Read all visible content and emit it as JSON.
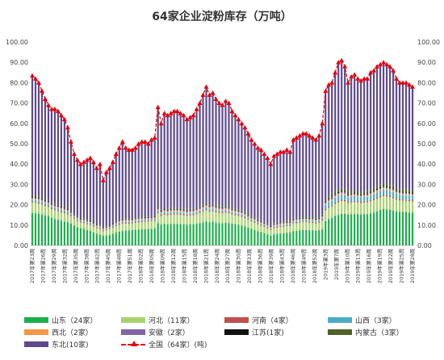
{
  "chart_data": {
    "type": "bar",
    "stacked": true,
    "title": "64家企业淀粉库存（万吨）",
    "ylim": [
      0,
      100
    ],
    "yticks": [
      "0.00",
      "10.00",
      "20.00",
      "30.00",
      "40.00",
      "50.00",
      "60.00",
      "70.00",
      "80.00",
      "90.00",
      "100.00"
    ],
    "grid": false,
    "legend_position": "bottom",
    "xtick_labels": [
      "2017年第23周",
      "2017年第26周",
      "2017年第29周",
      "2017年第32周",
      "2017年第35周",
      "2017年第38周",
      "2017年第42周",
      "2017年第45周",
      "2017年第48周",
      "2017年第51周",
      "2018年第02周",
      "2018年第05周",
      "2018年第09周",
      "2018年第12周",
      "2018年第15周",
      "2018年第18周",
      "2018年第21周",
      "2018年第24周",
      "2018年第27周",
      "2018年第30周",
      "2018年第33周",
      "2018年第36周",
      "2018年第39周",
      "2018年第43周",
      "2018年第46周",
      "2018年第49周",
      "2018年第52周",
      "2019年第3周",
      "2019年第7周",
      "2019年第10周",
      "2019年第13周",
      "2019年第16周",
      "2019年第19周",
      "2019年第22周",
      "2019年第25周",
      "2019年第28周"
    ],
    "total_line": {
      "name": "全国（64家）(吨)",
      "values": [
        83.5,
        82,
        80,
        76,
        72,
        69,
        67,
        67,
        66,
        64,
        62,
        58,
        51,
        45,
        42,
        40,
        41,
        42,
        43,
        41,
        38,
        40,
        32,
        36,
        38,
        41,
        45,
        48,
        51,
        48,
        47,
        47,
        48,
        50,
        51,
        51,
        50,
        52,
        53,
        68,
        60,
        65,
        64,
        65,
        66,
        66,
        65,
        64,
        62,
        63,
        64,
        67,
        70,
        74,
        78,
        74,
        75,
        72,
        70,
        69,
        71,
        70,
        66,
        64,
        62,
        60,
        58,
        55,
        52,
        50,
        48,
        47,
        45,
        43,
        40,
        44,
        45,
        46,
        46,
        47,
        46,
        52,
        53,
        54,
        55,
        55,
        54,
        53,
        52,
        54,
        60,
        76,
        79,
        80,
        85,
        90,
        91,
        88,
        80,
        83,
        84,
        82,
        81,
        82,
        82,
        85,
        86,
        88,
        89,
        90,
        89,
        88,
        86,
        82,
        80,
        80,
        80,
        79,
        78
      ]
    },
    "series": [
      {
        "name": "山东（24家）",
        "color": "#1bb04a",
        "values": [
          16,
          15.8,
          15.6,
          15.2,
          14.8,
          14.5,
          13.5,
          13,
          12.6,
          12.2,
          11.8,
          11.4,
          10.8,
          9.8,
          9,
          8.5,
          8.2,
          7.5,
          7.1,
          6.4,
          5.8,
          5.2,
          4.8,
          4.9,
          5.2,
          5.8,
          6.3,
          6.8,
          7.1,
          7.3,
          7.4,
          7.5,
          7.7,
          7.8,
          7.9,
          8,
          8.1,
          8.2,
          8.3,
          11,
          10.2,
          10.5,
          10.4,
          10.5,
          10.6,
          10.6,
          10.5,
          10.4,
          10.2,
          10.3,
          10.4,
          10.7,
          11,
          11.4,
          11.8,
          11.4,
          11.5,
          11.2,
          11,
          10.9,
          11.1,
          11,
          10.6,
          10.4,
          10.2,
          9.8,
          9.4,
          8.8,
          8.2,
          7.6,
          7,
          6.5,
          6,
          5.4,
          4.8,
          5.4,
          5.6,
          5.8,
          6,
          6.2,
          6.3,
          7,
          7.2,
          7.4,
          7.6,
          7.6,
          7.5,
          7.4,
          7.2,
          7.5,
          8,
          12,
          13,
          13.5,
          14.5,
          15,
          15.5,
          15.5,
          15.2,
          15.3,
          15.4,
          15.3,
          15.2,
          15.3,
          15.4,
          15.8,
          16.2,
          16.8,
          17.4,
          18,
          17.8,
          17.6,
          17.2,
          16.8,
          16.5,
          16.4,
          16.3,
          16.2,
          16.1
        ]
      },
      {
        "name": "河北（11家）",
        "color": "#a9d36e",
        "values": [
          5,
          5,
          4.9,
          4.8,
          4.6,
          4.4,
          4.3,
          4.2,
          4.2,
          4.1,
          4,
          3.8,
          3.5,
          3.2,
          3,
          2.8,
          2.8,
          2.9,
          3,
          2.9,
          2.6,
          2.8,
          2.2,
          2.5,
          2.7,
          2.9,
          3.1,
          3.3,
          3.5,
          3.4,
          3.3,
          3.3,
          3.4,
          3.5,
          3.6,
          3.6,
          3.5,
          3.6,
          3.7,
          4.7,
          4.2,
          4.5,
          4.4,
          4.5,
          4.6,
          4.6,
          4.5,
          4.4,
          4.3,
          4.4,
          4.4,
          4.6,
          4.8,
          5.1,
          5.4,
          5.1,
          5.2,
          5,
          4.9,
          4.8,
          4.9,
          4.8,
          4.6,
          4.4,
          4.3,
          4.2,
          4,
          3.8,
          3.6,
          3.5,
          3.3,
          3.2,
          3.1,
          3,
          2.8,
          3,
          3.1,
          3.2,
          3.2,
          3.3,
          3.2,
          3.6,
          3.7,
          3.8,
          3.8,
          3.8,
          3.7,
          3.7,
          3.6,
          3.7,
          4.2,
          5.3,
          5.5,
          5.6,
          5.9,
          6.2,
          6.3,
          6.1,
          5.6,
          5.8,
          5.9,
          5.7,
          5.6,
          5.7,
          5.7,
          5.9,
          6,
          6.1,
          6.2,
          6.3,
          6.2,
          6.1,
          6,
          5.7,
          5.6,
          5.6,
          5.6,
          5.5,
          5.4
        ]
      },
      {
        "name": "河南（4家）",
        "color": "#c0504d",
        "values": [
          0.5,
          0.5,
          0.5,
          0.5,
          0.5,
          0.5,
          0.5,
          0.5,
          0.5,
          0.5,
          0.5,
          0.5,
          0.4,
          0.4,
          0.4,
          0.4,
          0.4,
          0.4,
          0.4,
          0.4,
          0.4,
          0.4,
          0.3,
          0.3,
          0.3,
          0.4,
          0.4,
          0.4,
          0.4,
          0.4,
          0.4,
          0.4,
          0.4,
          0.4,
          0.4,
          0.4,
          0.4,
          0.4,
          0.4,
          0.5,
          0.5,
          0.5,
          0.5,
          0.5,
          0.5,
          0.5,
          0.5,
          0.5,
          0.5,
          0.5,
          0.5,
          0.5,
          0.5,
          0.5,
          0.6,
          0.5,
          0.5,
          0.5,
          0.5,
          0.5,
          0.5,
          0.5,
          0.5,
          0.5,
          0.5,
          0.5,
          0.5,
          0.4,
          0.4,
          0.4,
          0.4,
          0.4,
          0.4,
          0.4,
          0.4,
          0.4,
          0.4,
          0.4,
          0.4,
          0.4,
          0.4,
          0.4,
          0.4,
          0.4,
          0.4,
          0.4,
          0.4,
          0.4,
          0.4,
          0.4,
          0.5,
          0.6,
          0.6,
          0.6,
          0.7,
          0.7,
          0.7,
          0.7,
          0.6,
          0.6,
          0.6,
          0.6,
          0.6,
          0.6,
          0.6,
          0.6,
          0.7,
          0.7,
          0.7,
          0.7,
          0.7,
          0.7,
          0.7,
          0.6,
          0.6,
          0.6,
          0.6,
          0.6,
          0.6
        ]
      },
      {
        "name": "山西（3家）",
        "color": "#4bacc6",
        "values": [
          1,
          1,
          1,
          1,
          0.9,
          0.9,
          0.9,
          0.9,
          0.9,
          0.8,
          0.8,
          0.8,
          0.7,
          0.6,
          0.6,
          0.6,
          0.6,
          0.6,
          0.6,
          0.6,
          0.5,
          0.6,
          0.5,
          0.5,
          0.5,
          0.6,
          0.6,
          0.7,
          0.7,
          0.7,
          0.7,
          0.7,
          0.7,
          0.7,
          0.7,
          0.7,
          0.7,
          0.7,
          0.7,
          0.9,
          0.8,
          0.9,
          0.9,
          0.9,
          0.9,
          0.9,
          0.9,
          0.9,
          0.8,
          0.8,
          0.9,
          0.9,
          0.9,
          1,
          1,
          1,
          1,
          1,
          0.9,
          0.9,
          0.9,
          0.9,
          0.9,
          0.9,
          0.8,
          0.8,
          0.8,
          0.7,
          0.7,
          0.7,
          0.6,
          0.6,
          0.6,
          0.6,
          0.5,
          0.6,
          0.6,
          0.6,
          0.6,
          0.6,
          0.6,
          0.7,
          0.7,
          0.7,
          0.7,
          0.7,
          0.7,
          0.7,
          0.7,
          0.7,
          0.8,
          2,
          2.2,
          2.3,
          2.4,
          2.5,
          2.5,
          2.4,
          2.2,
          2.3,
          2.3,
          2.2,
          2.2,
          2.2,
          2.2,
          2.3,
          2.4,
          2.4,
          2.5,
          2.5,
          2.5,
          2.4,
          2.4,
          2.3,
          2.2,
          2.2,
          2.2,
          2.2,
          2.1
        ]
      },
      {
        "name": "西北（2家）",
        "color": "#f79646",
        "values": [
          0.5,
          0.5,
          0.5,
          0.5,
          0.5,
          0.5,
          0.5,
          0.5,
          0.5,
          0.5,
          0.5,
          0.5,
          0.4,
          0.4,
          0.4,
          0.3,
          0.3,
          0.3,
          0.3,
          0.3,
          0.3,
          0.3,
          0.3,
          0.3,
          0.3,
          0.3,
          0.4,
          0.4,
          0.4,
          0.4,
          0.4,
          0.4,
          0.4,
          0.4,
          0.4,
          0.4,
          0.4,
          0.4,
          0.4,
          0.5,
          0.5,
          0.5,
          0.5,
          0.5,
          0.5,
          0.5,
          0.5,
          0.5,
          0.5,
          0.5,
          0.5,
          0.5,
          0.6,
          0.6,
          0.6,
          0.6,
          0.6,
          0.6,
          0.6,
          0.6,
          0.6,
          0.6,
          0.5,
          0.5,
          0.5,
          0.5,
          0.5,
          0.4,
          0.4,
          0.4,
          0.4,
          0.4,
          0.4,
          0.4,
          0.3,
          0.4,
          0.4,
          0.4,
          0.4,
          0.4,
          0.4,
          0.4,
          0.4,
          0.4,
          0.4,
          0.4,
          0.4,
          0.4,
          0.4,
          0.4,
          0.5,
          0.6,
          0.6,
          0.6,
          0.7,
          0.7,
          0.7,
          0.7,
          0.6,
          0.6,
          0.6,
          0.6,
          0.6,
          0.6,
          0.6,
          0.6,
          0.7,
          0.7,
          0.7,
          0.7,
          0.7,
          0.7,
          0.7,
          0.6,
          0.6,
          0.6,
          0.6,
          0.6,
          0.6
        ]
      },
      {
        "name": "安徽（2家）",
        "color": "#8064a2",
        "values": [
          0.5,
          0.5,
          0.5,
          0.5,
          0.5,
          0.5,
          0.5,
          0.5,
          0.5,
          0.5,
          0.5,
          0.5,
          0.4,
          0.4,
          0.4,
          0.3,
          0.3,
          0.3,
          0.3,
          0.3,
          0.3,
          0.3,
          0.3,
          0.3,
          0.3,
          0.3,
          0.4,
          0.4,
          0.4,
          0.4,
          0.4,
          0.4,
          0.4,
          0.4,
          0.4,
          0.4,
          0.4,
          0.4,
          0.4,
          0.5,
          0.5,
          0.5,
          0.5,
          0.5,
          0.5,
          0.5,
          0.5,
          0.5,
          0.5,
          0.5,
          0.5,
          0.5,
          0.6,
          0.6,
          0.6,
          0.6,
          0.6,
          0.6,
          0.6,
          0.6,
          0.6,
          0.6,
          0.5,
          0.5,
          0.5,
          0.5,
          0.5,
          0.4,
          0.4,
          0.4,
          0.4,
          0.4,
          0.4,
          0.4,
          0.3,
          0.4,
          0.4,
          0.4,
          0.4,
          0.4,
          0.4,
          0.4,
          0.4,
          0.4,
          0.4,
          0.4,
          0.4,
          0.4,
          0.4,
          0.4,
          0.5,
          0.6,
          0.6,
          0.6,
          0.7,
          0.7,
          0.7,
          0.7,
          0.6,
          0.6,
          0.6,
          0.6,
          0.6,
          0.6,
          0.6,
          0.6,
          0.7,
          0.7,
          0.7,
          0.7,
          0.7,
          0.7,
          0.7,
          0.6,
          0.6,
          0.6,
          0.6,
          0.6,
          0.6
        ]
      },
      {
        "name": "江苏(1家)",
        "color": "#111111",
        "values": [
          0.3,
          0.3,
          0.3,
          0.3,
          0.3,
          0.3,
          0.3,
          0.3,
          0.3,
          0.3,
          0.3,
          0.3,
          0.2,
          0.2,
          0.2,
          0.2,
          0.2,
          0.2,
          0.2,
          0.2,
          0.2,
          0.2,
          0.2,
          0.2,
          0.2,
          0.2,
          0.2,
          0.2,
          0.2,
          0.2,
          0.2,
          0.2,
          0.2,
          0.2,
          0.2,
          0.2,
          0.2,
          0.2,
          0.2,
          0.3,
          0.3,
          0.3,
          0.3,
          0.3,
          0.3,
          0.3,
          0.3,
          0.3,
          0.3,
          0.3,
          0.3,
          0.3,
          0.3,
          0.3,
          0.3,
          0.3,
          0.3,
          0.3,
          0.3,
          0.3,
          0.3,
          0.3,
          0.3,
          0.3,
          0.3,
          0.3,
          0.3,
          0.2,
          0.2,
          0.2,
          0.2,
          0.2,
          0.2,
          0.2,
          0.2,
          0.2,
          0.2,
          0.2,
          0.2,
          0.2,
          0.2,
          0.2,
          0.2,
          0.2,
          0.2,
          0.2,
          0.2,
          0.2,
          0.2,
          0.2,
          0.3,
          0.3,
          0.3,
          0.3,
          0.4,
          0.4,
          0.4,
          0.4,
          0.3,
          0.3,
          0.3,
          0.3,
          0.3,
          0.3,
          0.3,
          0.3,
          0.4,
          0.4,
          0.4,
          0.4,
          0.4,
          0.4,
          0.4,
          0.3,
          0.3,
          0.3,
          0.3,
          0.3,
          0.3
        ]
      },
      {
        "name": "内蒙古（3家）",
        "color": "#4f6228",
        "values": [
          0.8,
          0.8,
          0.8,
          0.8,
          0.7,
          0.7,
          0.7,
          0.7,
          0.7,
          0.7,
          0.7,
          0.6,
          0.5,
          0.5,
          0.4,
          0.4,
          0.4,
          0.4,
          0.4,
          0.4,
          0.4,
          0.4,
          0.3,
          0.4,
          0.4,
          0.4,
          0.5,
          0.5,
          0.5,
          0.5,
          0.5,
          0.5,
          0.5,
          0.5,
          0.5,
          0.5,
          0.5,
          0.5,
          0.5,
          0.7,
          0.6,
          0.7,
          0.6,
          0.7,
          0.7,
          0.7,
          0.7,
          0.6,
          0.6,
          0.6,
          0.6,
          0.7,
          0.7,
          0.7,
          0.8,
          0.7,
          0.8,
          0.7,
          0.7,
          0.7,
          0.7,
          0.7,
          0.7,
          0.6,
          0.6,
          0.6,
          0.6,
          0.6,
          0.5,
          0.5,
          0.5,
          0.5,
          0.5,
          0.4,
          0.4,
          0.4,
          0.5,
          0.5,
          0.5,
          0.5,
          0.5,
          0.5,
          0.5,
          0.5,
          0.6,
          0.6,
          0.5,
          0.5,
          0.5,
          0.5,
          0.6,
          1.2,
          1.3,
          1.3,
          1.4,
          1.5,
          1.5,
          1.4,
          1.3,
          1.3,
          1.3,
          1.3,
          1.3,
          1.3,
          1.3,
          1.4,
          1.4,
          1.4,
          1.4,
          1.5,
          1.4,
          1.4,
          1.4,
          1.3,
          1.3,
          1.3,
          1.3,
          1.3,
          1.3
        ]
      },
      {
        "name": "东北(10家)",
        "color": "#5e4a8c",
        "values": "remainder"
      }
    ]
  }
}
